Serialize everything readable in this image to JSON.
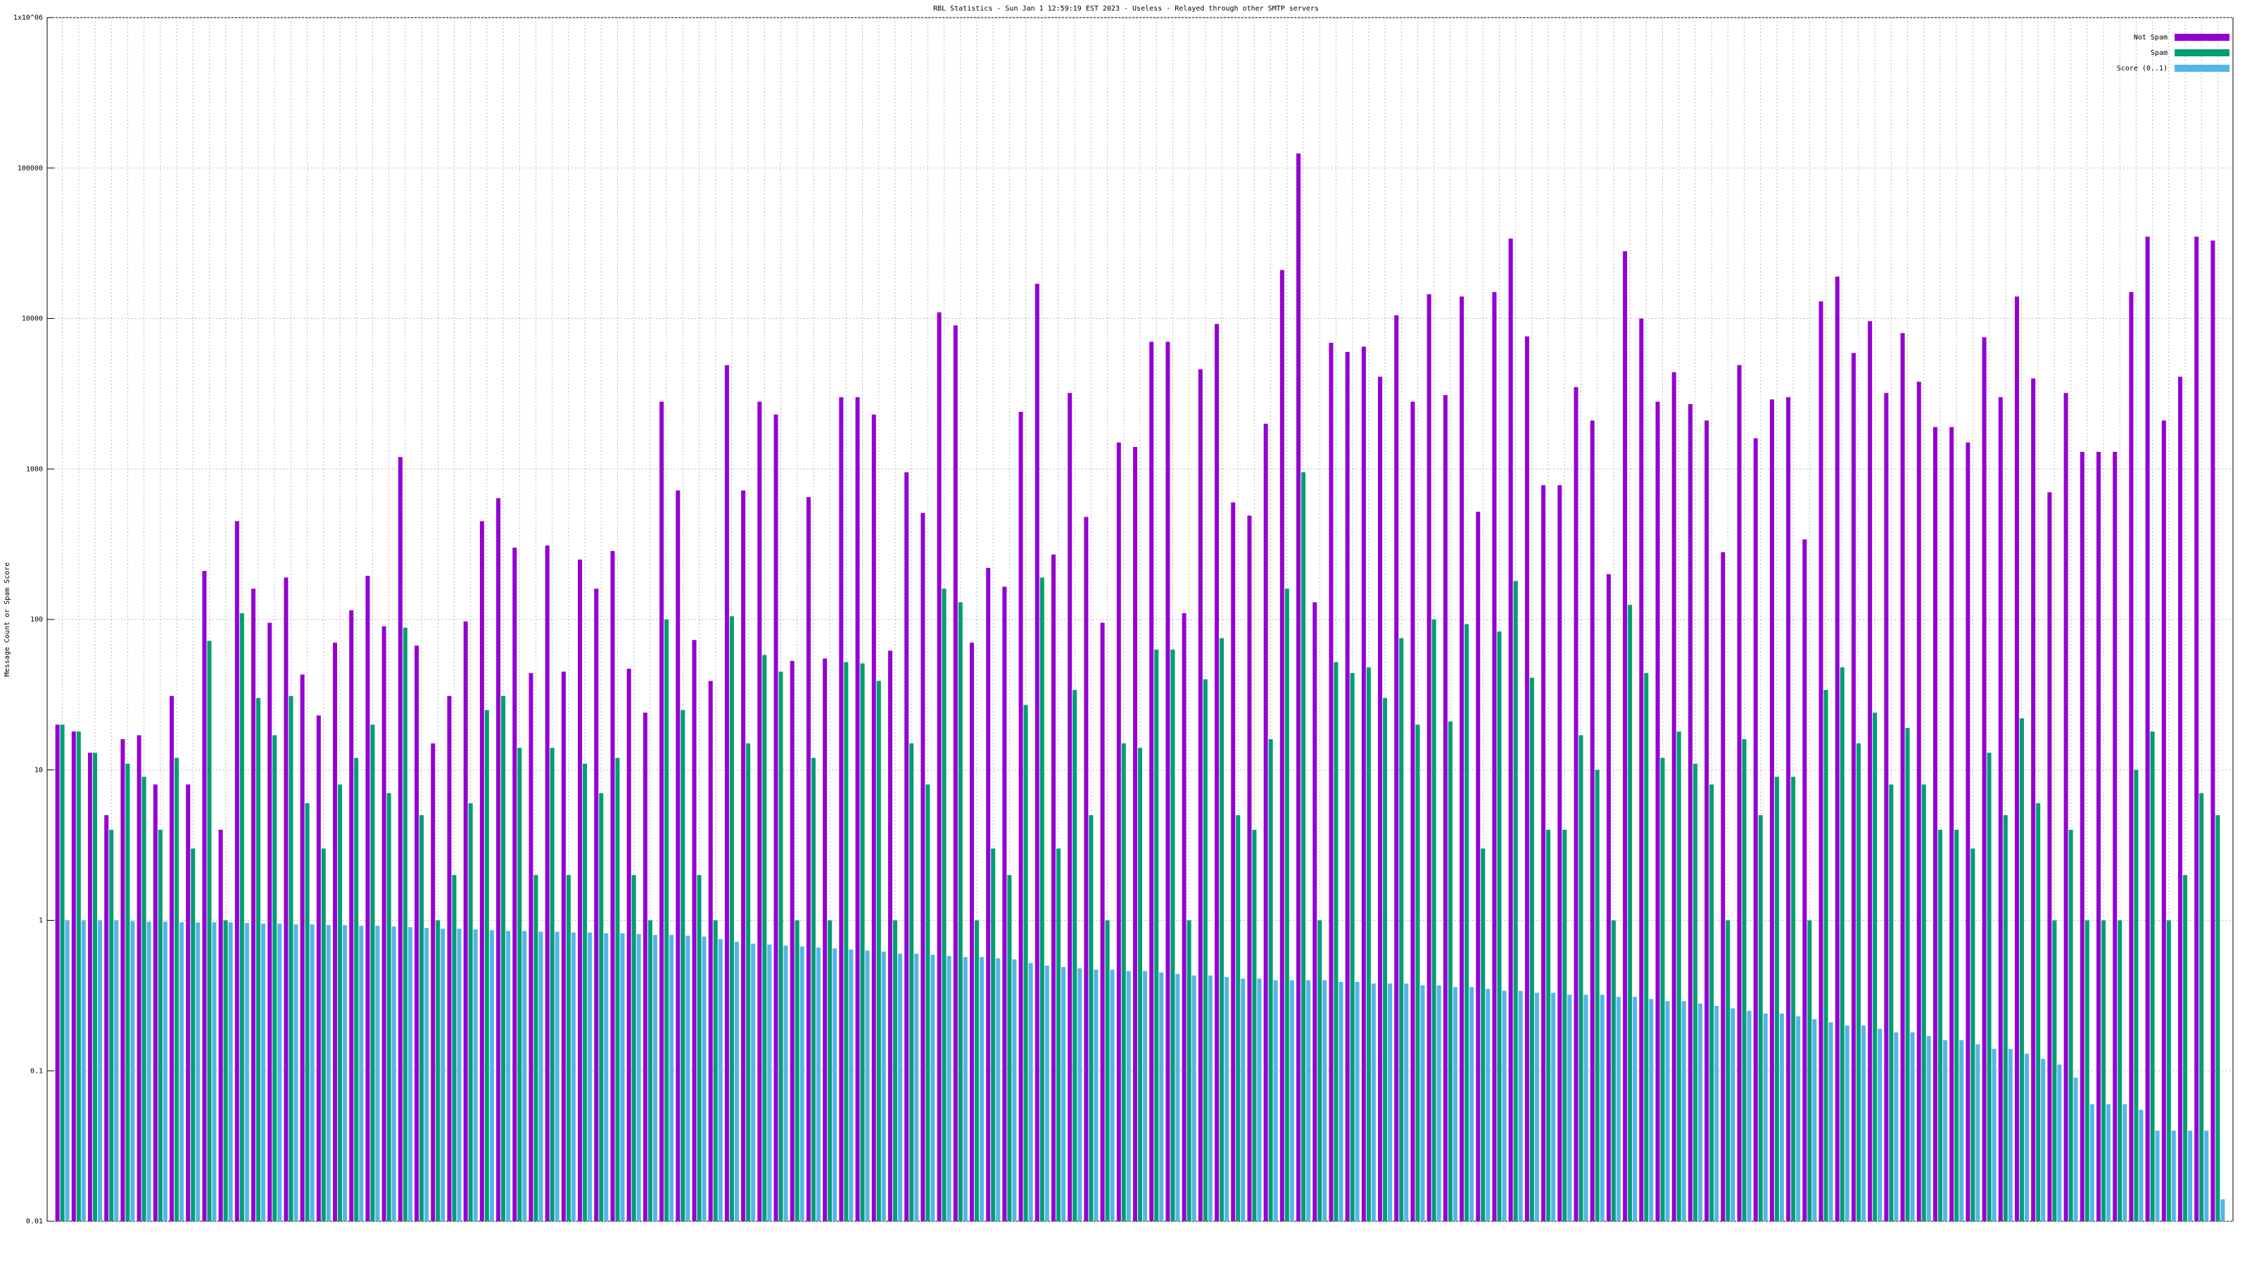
{
  "chart_data": {
    "type": "bar",
    "title": "RBL Statistics - Sun Jan  1 12:59:19 EST 2023 - Useless - Relayed through other SMTP servers",
    "ylabel": "Message Count or Spam Score",
    "log_scale": true,
    "grid": true,
    "legend": "top right",
    "ylim": [
      0.01,
      1000000
    ],
    "yticks": [
      0.01,
      0.1,
      1,
      10,
      100,
      1000,
      10000,
      100000,
      {
        "value": 1000000,
        "label": "1x10^06"
      }
    ],
    "categories": [
      null,
      null,
      null,
      null,
      null,
      null,
      null,
      null,
      null,
      null,
      null,
      null,
      null,
      null,
      null,
      null,
      null,
      null,
      null,
      null,
      null,
      null,
      null,
      null,
      null,
      null,
      null,
      null,
      null,
      null,
      null,
      null,
      null,
      null,
      null,
      null,
      null,
      null,
      null,
      null,
      null,
      null,
      null,
      null,
      null,
      null,
      null,
      null,
      null,
      null,
      null,
      null,
      null,
      null,
      null,
      null,
      null,
      null,
      null,
      null,
      null,
      null,
      null,
      null,
      null,
      null,
      null,
      null,
      null,
      null,
      null,
      null,
      null,
      null,
      null,
      null,
      null,
      null,
      null,
      null,
      null,
      null,
      null,
      null,
      null,
      null,
      null,
      null,
      null,
      null,
      null,
      null,
      null,
      null,
      null,
      null,
      null,
      null,
      null,
      null,
      null,
      null,
      null,
      null,
      null,
      null,
      null,
      null,
      null,
      null,
      null,
      null,
      null,
      null,
      null,
      null,
      null,
      null,
      null,
      null,
      null,
      null,
      null,
      null,
      null,
      null,
      null,
      null,
      null,
      null,
      null,
      null,
      null
    ],
    "series": [
      {
        "name": "Not Spam",
        "color": "#9400d3",
        "values": [
          20,
          18,
          13,
          5,
          16,
          17,
          8,
          31,
          8,
          210,
          4,
          450,
          160,
          95,
          190,
          43,
          23,
          70,
          115,
          195,
          90,
          1200,
          67,
          15,
          31,
          97,
          450,
          640,
          300,
          44,
          310,
          45,
          250,
          160,
          285,
          47,
          24,
          2800,
          720,
          73,
          39,
          4900,
          720,
          2800,
          2300,
          53,
          650,
          55,
          3000,
          3000,
          2300,
          62,
          950,
          510,
          11000,
          9000,
          70,
          220,
          165,
          2400,
          17000,
          270,
          3200,
          480,
          95,
          1500,
          1400,
          7000,
          7000,
          110,
          4600,
          9200,
          600,
          490,
          2000,
          21000,
          125000,
          130,
          6900,
          6000,
          6500,
          4100,
          10500,
          2800,
          14500,
          3100,
          14000,
          520,
          15000,
          34000,
          7600,
          780,
          780,
          3500,
          2100,
          200,
          28000,
          10000,
          2800,
          4400,
          2700,
          2100,
          280,
          4900,
          1600,
          2900,
          3000,
          340,
          13000,
          19000,
          5900,
          9600,
          3200,
          8000,
          3800,
          1900,
          1900,
          1500,
          7500,
          3000,
          14000,
          4000,
          700,
          3200,
          1300,
          1300,
          1300,
          15000,
          35000,
          2100,
          4100,
          35000,
          33000
        ]
      },
      {
        "name": "Spam",
        "color": "#009e73",
        "values": [
          20,
          18,
          13,
          4,
          11,
          9,
          4,
          12,
          3,
          72,
          1,
          110,
          30,
          17,
          31,
          6,
          3,
          8,
          12,
          20,
          7,
          88,
          5,
          1,
          2,
          6,
          25,
          31,
          14,
          2,
          14,
          2,
          11,
          7,
          12,
          2,
          1,
          100,
          25,
          2,
          1,
          105,
          15,
          58,
          45,
          1,
          12,
          1,
          52,
          51,
          39,
          1,
          15,
          8,
          160,
          130,
          1,
          3,
          2,
          27,
          190,
          3,
          34,
          5,
          1,
          15,
          14,
          63,
          63,
          1,
          40,
          75,
          5,
          4,
          16,
          160,
          950,
          1,
          52,
          44,
          48,
          30,
          75,
          20,
          100,
          21,
          93,
          3,
          83,
          180,
          41,
          4,
          4,
          17,
          10,
          1,
          125,
          44,
          12,
          18,
          11,
          8,
          1,
          16,
          5,
          9,
          9,
          1,
          34,
          48,
          15,
          24,
          8,
          19,
          8,
          4,
          4,
          3,
          13,
          5,
          22,
          6,
          1,
          4,
          1,
          1,
          1,
          10,
          18,
          1,
          2,
          7,
          5
        ]
      },
      {
        "name": "Score (0..1)",
        "color": "#56b4e9",
        "values": [
          1,
          1,
          1,
          1,
          0.99,
          0.98,
          0.98,
          0.97,
          0.97,
          0.97,
          0.97,
          0.96,
          0.95,
          0.95,
          0.94,
          0.94,
          0.93,
          0.93,
          0.92,
          0.92,
          0.91,
          0.9,
          0.89,
          0.88,
          0.88,
          0.87,
          0.86,
          0.85,
          0.85,
          0.84,
          0.84,
          0.83,
          0.83,
          0.82,
          0.82,
          0.81,
          0.8,
          0.8,
          0.79,
          0.78,
          0.75,
          0.72,
          0.7,
          0.69,
          0.68,
          0.67,
          0.66,
          0.65,
          0.64,
          0.63,
          0.62,
          0.6,
          0.6,
          0.59,
          0.58,
          0.57,
          0.57,
          0.56,
          0.55,
          0.52,
          0.5,
          0.49,
          0.48,
          0.47,
          0.47,
          0.46,
          0.46,
          0.45,
          0.44,
          0.43,
          0.43,
          0.42,
          0.41,
          0.41,
          0.4,
          0.4,
          0.4,
          0.4,
          0.39,
          0.39,
          0.38,
          0.38,
          0.38,
          0.37,
          0.37,
          0.36,
          0.36,
          0.35,
          0.34,
          0.34,
          0.33,
          0.33,
          0.32,
          0.32,
          0.32,
          0.31,
          0.31,
          0.3,
          0.29,
          0.29,
          0.28,
          0.27,
          0.26,
          0.25,
          0.24,
          0.24,
          0.23,
          0.22,
          0.21,
          0.2,
          0.2,
          0.19,
          0.18,
          0.18,
          0.17,
          0.16,
          0.16,
          0.15,
          0.14,
          0.14,
          0.13,
          0.12,
          0.11,
          0.09,
          0.06,
          0.06,
          0.06,
          0.055,
          0.04,
          0.04,
          0.04,
          0.04,
          0.014
        ]
      }
    ]
  }
}
